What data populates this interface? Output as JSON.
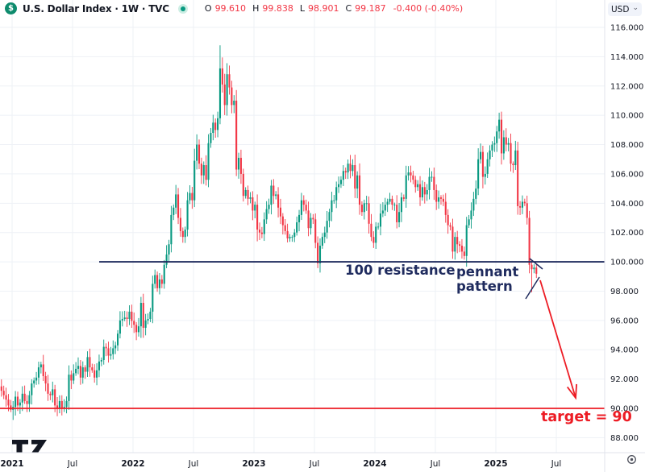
{
  "header": {
    "symbol_logo_letter": "$",
    "symbol_title": "U.S. Dollar Index · 1W · TVC",
    "ohlc": {
      "open_label": "O",
      "open": "99.610",
      "high_label": "H",
      "high": "99.838",
      "low_label": "L",
      "low": "98.901",
      "close_label": "C",
      "close": "99.187",
      "change": "-0.400 (-0.40%)"
    }
  },
  "price_axis": {
    "currency": "USD",
    "labels": [
      "116.000",
      "114.000",
      "112.000",
      "110.000",
      "108.000",
      "106.000",
      "104.000",
      "102.000",
      "100.000",
      "98.000",
      "96.000",
      "94.000",
      "92.000",
      "90.000",
      "88.000"
    ]
  },
  "time_axis": {
    "labels": [
      "2021",
      "Jul",
      "2022",
      "Jul",
      "2023",
      "Jul",
      "2024",
      "Jul",
      "2025",
      "Jul"
    ]
  },
  "annotations": {
    "resistance_label": "100 resistance",
    "pennant_label_line1": "pennant",
    "pennant_label_line2": "pattern",
    "target_label": "target = 90"
  },
  "colors": {
    "up": "#089981",
    "down": "#f23645",
    "drawing_navy": "#1f2b5e",
    "drawing_red": "#ed1c24",
    "axis_text": "#131722",
    "grid": "#eef1f6",
    "separator": "#e0e3eb"
  },
  "chart_data": {
    "type": "candlestick",
    "symbol": "U.S. Dollar Index",
    "timeframe": "1W",
    "ylim": [
      88,
      116
    ],
    "grid": true,
    "levels": {
      "resistance": 100,
      "target": 90
    },
    "last_candle": {
      "open": 99.61,
      "high": 99.838,
      "low": 98.901,
      "close": 99.187
    },
    "closes": [
      91.2,
      90.9,
      90.6,
      90.2,
      89.9,
      90.1,
      90.8,
      90.2,
      90.4,
      91.0,
      90.5,
      90.3,
      90.9,
      91.7,
      91.9,
      92.1,
      92.8,
      93.0,
      92.2,
      91.7,
      91.0,
      90.9,
      91.3,
      90.2,
      90.0,
      90.5,
      90.0,
      90.1,
      90.5,
      92.3,
      91.9,
      92.4,
      92.7,
      92.9,
      92.1,
      92.8,
      92.5,
      93.5,
      92.8,
      92.6,
      92.1,
      92.6,
      93.2,
      93.3,
      94.2,
      94.1,
      93.6,
      93.7,
      94.1,
      94.3,
      95.1,
      96.0,
      96.1,
      96.2,
      96.1,
      96.6,
      95.97,
      95.7,
      95.2,
      95.6,
      97.2,
      95.5,
      96.0,
      96.1,
      96.6,
      98.5,
      99.1,
      98.2,
      98.8,
      98.5,
      99.8,
      100.5,
      101.2,
      103.2,
      103.7,
      104.6,
      103.0,
      102.1,
      101.7,
      102.2,
      104.2,
      104.7,
      104.2,
      106.9,
      108.0,
      106.7,
      105.9,
      106.6,
      105.6,
      108.1,
      108.8,
      109.5,
      109.0,
      109.8,
      113.2,
      112.1,
      110.7,
      112.8,
      111.9,
      110.7,
      111.0,
      106.3,
      107.1,
      106.0,
      104.5,
      104.9,
      104.3,
      104.4,
      103.5,
      103.9,
      102.2,
      102.0,
      101.9,
      102.9,
      103.6,
      103.9,
      105.2,
      104.5,
      104.6,
      103.7,
      103.1,
      102.5,
      102.1,
      101.6,
      101.7,
      101.7,
      102.0,
      102.7,
      103.2,
      104.2,
      103.9,
      103.5,
      102.3,
      103.0,
      102.9,
      101.3,
      99.9,
      101.1,
      101.7,
      102.0,
      102.8,
      103.4,
      104.2,
      104.2,
      105.1,
      105.3,
      105.6,
      106.2,
      106.1,
      106.7,
      106.2,
      106.6,
      105.0,
      105.9,
      103.9,
      103.4,
      104.0,
      104.0,
      102.6,
      101.7,
      101.3,
      102.4,
      102.4,
      103.3,
      103.5,
      103.9,
      104.1,
      104.3,
      103.9,
      103.9,
      102.7,
      103.4,
      104.4,
      104.3,
      105.9,
      106.1,
      105.9,
      105.6,
      105.1,
      105.3,
      104.4,
      105.1,
      104.6,
      104.9,
      105.8,
      105.8,
      104.9,
      104.1,
      104.4,
      104.3,
      104.1,
      103.2,
      102.5,
      102.4,
      100.7,
      101.7,
      101.2,
      101.1,
      100.7,
      100.4,
      102.5,
      102.9,
      103.5,
      104.3,
      105.0,
      107.0,
      107.5,
      105.8,
      106.0,
      107.0,
      107.6,
      108.0,
      108.1,
      108.9,
      109.7,
      107.4,
      108.5,
      108.0,
      108.1,
      106.7,
      106.6,
      107.6,
      103.8,
      103.7,
      104.1,
      104.0,
      103.0,
      99.8,
      99.5,
      99.61,
      99.19
    ],
    "wick_overrides": {
      "5": {
        "low": 89.21
      },
      "26": {
        "low": 89.52
      },
      "94": {
        "high": 114.78
      },
      "95": {
        "high": 113.95
      },
      "136": {
        "low": 99.57
      },
      "194": {
        "low": 100.21
      },
      "199": {
        "low": 100.15
      },
      "214": {
        "high": 110.18
      },
      "228": {
        "low": 97.92
      },
      "230": {
        "high": 99.838,
        "low": 98.901
      }
    }
  }
}
